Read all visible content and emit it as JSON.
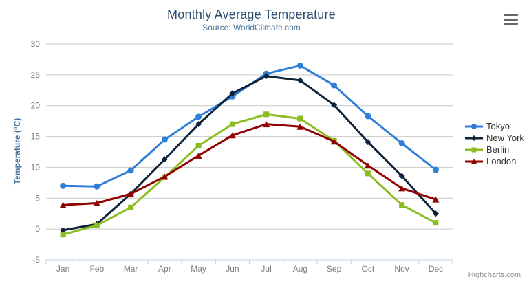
{
  "chart_data": {
    "type": "line",
    "title": "Monthly Average Temperature",
    "subtitle": "Source: WorldClimate.com",
    "xlabel": "",
    "ylabel": "Temperature (°C)",
    "categories": [
      "Jan",
      "Feb",
      "Mar",
      "Apr",
      "May",
      "Jun",
      "Jul",
      "Aug",
      "Sep",
      "Oct",
      "Nov",
      "Dec"
    ],
    "series": [
      {
        "name": "Tokyo",
        "color": "#2f7ed8",
        "marker": "circle",
        "values": [
          7.0,
          6.9,
          9.5,
          14.5,
          18.2,
          21.5,
          25.2,
          26.5,
          23.3,
          18.3,
          13.9,
          9.6
        ]
      },
      {
        "name": "New York",
        "color": "#0d233a",
        "marker": "diamond",
        "values": [
          -0.2,
          0.8,
          5.7,
          11.3,
          17.0,
          22.0,
          24.8,
          24.1,
          20.1,
          14.1,
          8.6,
          2.5
        ]
      },
      {
        "name": "Berlin",
        "color": "#8bbc21",
        "marker": "square",
        "values": [
          -0.9,
          0.6,
          3.5,
          8.4,
          13.5,
          17.0,
          18.6,
          17.9,
          14.3,
          9.0,
          3.9,
          1.0
        ]
      },
      {
        "name": "London",
        "color": "#910000",
        "marker": "triangle",
        "values": [
          3.9,
          4.2,
          5.7,
          8.5,
          11.9,
          15.2,
          17.0,
          16.6,
          14.2,
          10.3,
          6.6,
          4.8
        ]
      }
    ],
    "ylim": [
      -5,
      30
    ],
    "yticks": [
      -5,
      0,
      5,
      10,
      15,
      20,
      25,
      30
    ],
    "grid": "horizontal",
    "legend_position": "right",
    "axis_line_color": "#c0d0e0",
    "grid_line_color": "#c9c9c9"
  },
  "credits": "Highcharts.com"
}
